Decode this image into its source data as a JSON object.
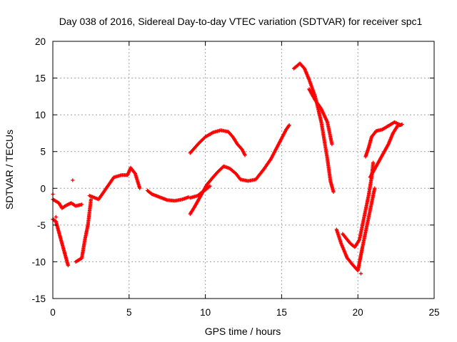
{
  "chart_data": {
    "type": "scatter",
    "title": "Day 038 of 2016, Sidereal Day-to-day VTEC variation (SDTVAR) for receiver spc1",
    "xlabel": "GPS time / hours",
    "ylabel": "SDTVAR / TECUs",
    "xlim": [
      0,
      25
    ],
    "ylim": [
      -15,
      20
    ],
    "xticks": [
      0,
      5,
      10,
      15,
      20,
      25
    ],
    "yticks": [
      -15,
      -10,
      -5,
      0,
      5,
      10,
      15,
      20
    ],
    "xtick_labels": [
      "0",
      "5",
      "10",
      "15",
      "20",
      "25"
    ],
    "ytick_labels": [
      "-15",
      "-10",
      "-5",
      "0",
      "5",
      "10",
      "15",
      "20"
    ],
    "grid": true,
    "marker": "plus",
    "color": "#ff0000",
    "series": [
      {
        "name": "arc-1",
        "points": [
          [
            0,
            -1.5
          ],
          [
            0.4,
            -2
          ],
          [
            0.6,
            -2.7
          ],
          [
            0.9,
            -2.3
          ],
          [
            1.2,
            -2
          ],
          [
            1.5,
            -2.4
          ],
          [
            1.9,
            -2.2
          ]
        ]
      },
      {
        "name": "arc-2",
        "points": [
          [
            0,
            -4.2
          ],
          [
            0.2,
            -4.5
          ],
          [
            0.4,
            -6
          ],
          [
            0.6,
            -7.5
          ],
          [
            0.8,
            -9
          ],
          [
            1.0,
            -10.5
          ]
        ]
      },
      {
        "name": "arc-3",
        "points": [
          [
            1.5,
            -10
          ],
          [
            1.9,
            -9.5
          ],
          [
            2.1,
            -7
          ],
          [
            2.3,
            -5
          ],
          [
            2.5,
            -1.5
          ]
        ]
      },
      {
        "name": "arc-4",
        "points": [
          [
            2.4,
            -1
          ],
          [
            3.0,
            -1.5
          ],
          [
            3.5,
            0
          ],
          [
            4.0,
            1.5
          ],
          [
            4.5,
            1.8
          ],
          [
            4.9,
            1.8
          ],
          [
            5.1,
            2.8
          ],
          [
            5.4,
            2
          ],
          [
            5.7,
            0
          ]
        ]
      },
      {
        "name": "arc-5",
        "points": [
          [
            6.2,
            -0.3
          ],
          [
            6.5,
            -0.8
          ],
          [
            7.0,
            -1.2
          ],
          [
            7.5,
            -1.6
          ],
          [
            8.0,
            -1.7
          ],
          [
            8.5,
            -1.5
          ],
          [
            8.9,
            -1.2
          ]
        ]
      },
      {
        "name": "arc-6",
        "points": [
          [
            9.0,
            -1.3
          ],
          [
            9.5,
            -1
          ],
          [
            9.8,
            -0.5
          ],
          [
            10.0,
            -0.2
          ],
          [
            10.3,
            0.3
          ]
        ]
      },
      {
        "name": "arc-7",
        "points": [
          [
            9.0,
            -3.5
          ],
          [
            9.3,
            -2.5
          ],
          [
            9.7,
            -1
          ],
          [
            10.1,
            0.5
          ],
          [
            10.5,
            1.5
          ],
          [
            10.8,
            2.2
          ],
          [
            11.2,
            3
          ],
          [
            11.6,
            2.7
          ],
          [
            12.0,
            2
          ],
          [
            12.3,
            1.2
          ],
          [
            12.8,
            1
          ],
          [
            13.3,
            1.2
          ],
          [
            13.8,
            2.5
          ],
          [
            14.3,
            4
          ],
          [
            14.8,
            6
          ],
          [
            15.3,
            8
          ],
          [
            15.5,
            8.6
          ]
        ]
      },
      {
        "name": "arc-8",
        "points": [
          [
            9.0,
            4.8
          ],
          [
            9.3,
            5.5
          ],
          [
            9.6,
            6.2
          ],
          [
            10.0,
            7
          ],
          [
            10.5,
            7.6
          ],
          [
            11.0,
            7.9
          ],
          [
            11.5,
            7.7
          ],
          [
            11.8,
            7
          ],
          [
            12.1,
            6
          ],
          [
            12.4,
            5.3
          ],
          [
            12.6,
            4.5
          ]
        ]
      },
      {
        "name": "arc-9",
        "points": [
          [
            15.8,
            16.3
          ],
          [
            16.2,
            17
          ],
          [
            16.5,
            16.3
          ],
          [
            16.8,
            14.8
          ],
          [
            17.2,
            12.5
          ],
          [
            17.6,
            9
          ],
          [
            18.0,
            4
          ],
          [
            18.2,
            1
          ],
          [
            18.4,
            -0.5
          ]
        ]
      },
      {
        "name": "arc-10",
        "points": [
          [
            16.8,
            13.5
          ],
          [
            17.2,
            12
          ],
          [
            17.6,
            10.8
          ],
          [
            18.0,
            9
          ],
          [
            18.3,
            6
          ]
        ]
      },
      {
        "name": "arc-11",
        "points": [
          [
            18.6,
            -5.6
          ],
          [
            18.9,
            -7.5
          ],
          [
            19.3,
            -9.5
          ],
          [
            19.7,
            -10.5
          ],
          [
            20.0,
            -11.2
          ],
          [
            20.3,
            -8
          ],
          [
            20.6,
            -5
          ],
          [
            20.9,
            -2
          ],
          [
            21.1,
            0
          ]
        ]
      },
      {
        "name": "arc-12",
        "points": [
          [
            19.0,
            -6.2
          ],
          [
            19.5,
            -7.5
          ],
          [
            19.8,
            -8
          ],
          [
            20.1,
            -7
          ],
          [
            20.4,
            -4
          ],
          [
            20.7,
            -1
          ],
          [
            20.9,
            1.5
          ],
          [
            21.0,
            3.5
          ]
        ]
      },
      {
        "name": "arc-13",
        "points": [
          [
            20.5,
            4.3
          ],
          [
            20.7,
            5.5
          ],
          [
            20.9,
            7
          ],
          [
            21.2,
            7.8
          ],
          [
            21.6,
            8
          ],
          [
            22.0,
            8.5
          ],
          [
            22.4,
            9
          ],
          [
            22.8,
            8.6
          ]
        ]
      },
      {
        "name": "arc-14",
        "points": [
          [
            20.8,
            1.5
          ],
          [
            21.2,
            3
          ],
          [
            21.6,
            4.5
          ],
          [
            22.0,
            6
          ],
          [
            22.3,
            7.5
          ],
          [
            22.6,
            8.5
          ],
          [
            22.9,
            8.7
          ]
        ]
      },
      {
        "name": "outliers",
        "points": [
          [
            1.3,
            1.1
          ],
          [
            0.0,
            -0.8
          ],
          [
            0.2,
            -3.9
          ],
          [
            20.2,
            -11.6
          ]
        ]
      }
    ]
  }
}
